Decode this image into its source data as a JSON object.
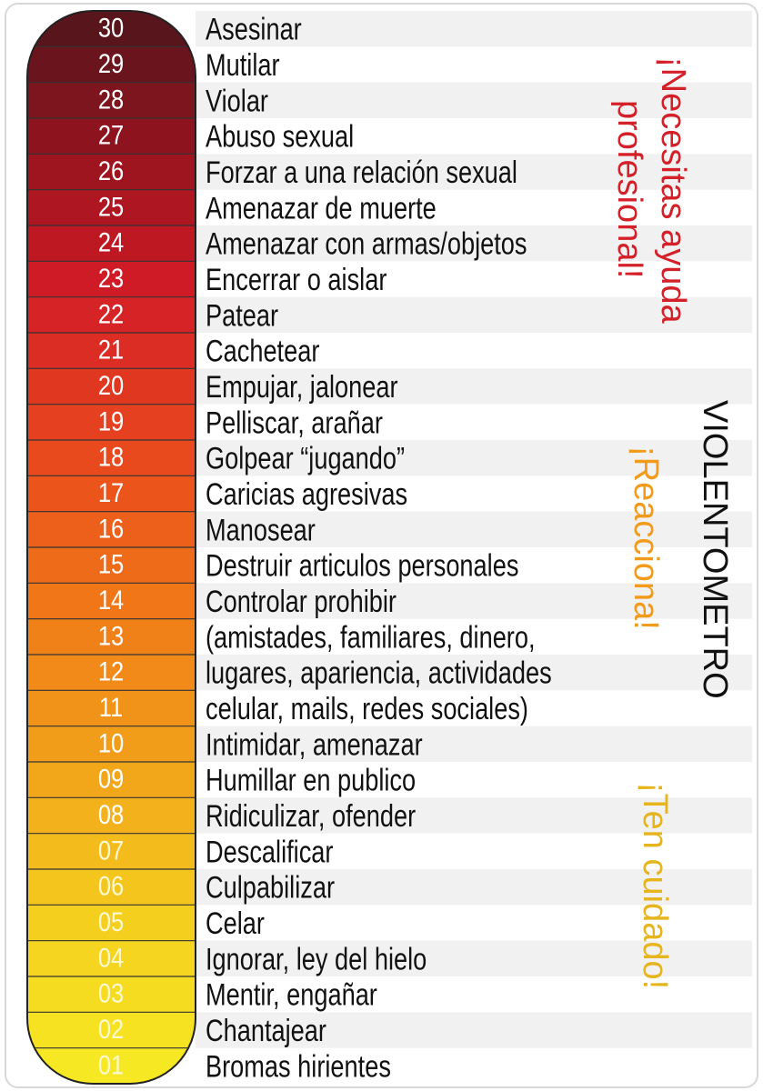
{
  "rows": [
    {
      "number": "30",
      "text": "Asesinar"
    },
    {
      "number": "29",
      "text": "Mutilar"
    },
    {
      "number": "28",
      "text": "Violar"
    },
    {
      "number": "27",
      "text": "Abuso sexual"
    },
    {
      "number": "26",
      "text": "Forzar a una relación sexual"
    },
    {
      "number": "25",
      "text": "Amenazar de muerte"
    },
    {
      "number": "24",
      "text": "Amenazar con armas/objetos"
    },
    {
      "number": "23",
      "text": "Encerrar o aislar"
    },
    {
      "number": "22",
      "text": "Patear"
    },
    {
      "number": "21",
      "text": "Cachetear"
    },
    {
      "number": "20",
      "text": "Empujar, jalonear"
    },
    {
      "number": "19",
      "text": "Pelliscar, arañar"
    },
    {
      "number": "18",
      "text": "Golpear “jugando”"
    },
    {
      "number": "17",
      "text": "Caricias agresivas"
    },
    {
      "number": "16",
      "text": "Manosear"
    },
    {
      "number": "15",
      "text": "Destruir articulos personales"
    },
    {
      "number": "14",
      "text": "Controlar prohibir"
    },
    {
      "number": "13",
      "text": "(amistades, familiares, dinero,"
    },
    {
      "number": "12",
      "text": "lugares, apariencia, actividades"
    },
    {
      "number": "11",
      "text": "celular, mails, redes sociales)"
    },
    {
      "number": "10",
      "text": "Intimidar, amenazar"
    },
    {
      "number": "09",
      "text": "Humillar en publico"
    },
    {
      "number": "08",
      "text": "Ridiculizar, ofender"
    },
    {
      "number": "07",
      "text": "Descalificar"
    },
    {
      "number": "06",
      "text": "Culpabilizar"
    },
    {
      "number": "05",
      "text": "Celar"
    },
    {
      "number": "04",
      "text": "Ignorar, ley del hielo"
    },
    {
      "number": "03",
      "text": "Mentir, engañar"
    },
    {
      "number": "02",
      "text": "Chantajear"
    },
    {
      "number": "01",
      "text": "Bromas hirientes"
    }
  ],
  "side_notes": {
    "title": "VIOLENTOMETRO",
    "seek_help": [
      "¡Necesitas ayuda",
      "profesional!"
    ],
    "react": "¡Reacciona!",
    "careful": "¡Ten cuidado!"
  }
}
